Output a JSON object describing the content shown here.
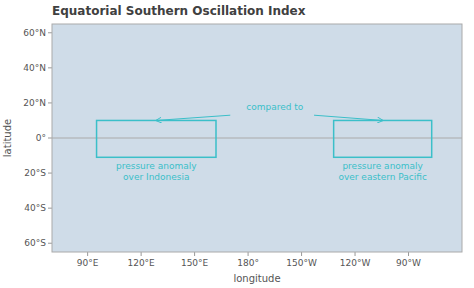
{
  "chart_data": {
    "type": "map",
    "title": "Equatorial Southern Oscillation Index",
    "x_label": "longitude",
    "y_label": "latitude",
    "xlim": [
      70,
      300
    ],
    "ylim": [
      -65,
      65
    ],
    "xticks": [
      {
        "value": 90,
        "label": "90°E"
      },
      {
        "value": 120,
        "label": "120°E"
      },
      {
        "value": 150,
        "label": "150°E"
      },
      {
        "value": 180,
        "label": "180°"
      },
      {
        "value": 210,
        "label": "150°W"
      },
      {
        "value": 240,
        "label": "120°W"
      },
      {
        "value": 270,
        "label": "90°W"
      }
    ],
    "yticks": [
      {
        "value": -60,
        "label": "60°S"
      },
      {
        "value": -40,
        "label": "40°S"
      },
      {
        "value": -20,
        "label": "20°S"
      },
      {
        "value": 0,
        "label": "0°"
      },
      {
        "value": 20,
        "label": "20°N"
      },
      {
        "value": 40,
        "label": "40°N"
      },
      {
        "value": 60,
        "label": "60°N"
      }
    ],
    "hlines": [
      0
    ],
    "color": "#3bbfc9",
    "regions": [
      {
        "label": "pressure anomaly\nover Indonesia",
        "lon": [
          95,
          162
        ],
        "lat": [
          -11,
          10
        ]
      },
      {
        "label": "pressure anomaly\nover eastern Pacific",
        "lon": [
          228,
          283
        ],
        "lat": [
          -11,
          10
        ]
      }
    ],
    "annotations": [
      {
        "text": "compared to",
        "x": 195,
        "y": 15,
        "arrows": [
          {
            "x_from": 170,
            "y_from": 13,
            "x_to": 128.5,
            "y_to": 10
          },
          {
            "x_from": 217,
            "y_from": 13,
            "x_to": 255.5,
            "y_to": 10
          }
        ]
      }
    ]
  }
}
